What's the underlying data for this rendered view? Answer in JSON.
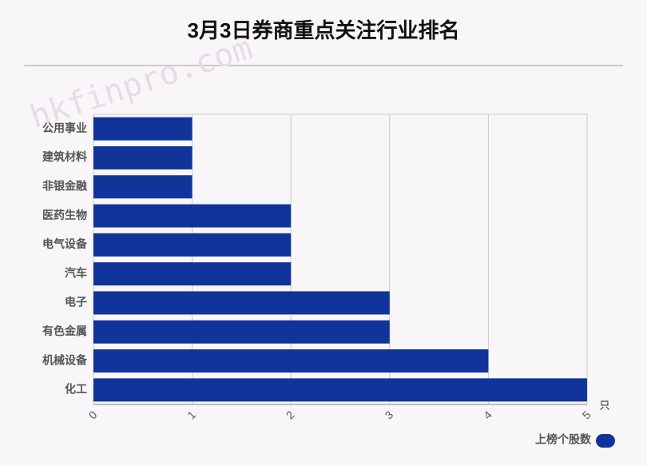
{
  "chart_data": {
    "type": "hbar",
    "title": "3月3日券商重点关注行业排名",
    "watermark": "hkfinpro.com",
    "categories": [
      "公用事业",
      "建筑材料",
      "非银金融",
      "医药生物",
      "电气设备",
      "汽车",
      "电子",
      "有色金属",
      "机械设备",
      "化工"
    ],
    "series": [
      {
        "name": "上榜个股数",
        "color": "#10349a",
        "values": [
          1,
          1,
          1,
          2,
          2,
          2,
          3,
          3,
          4,
          5
        ]
      }
    ],
    "xlim": [
      0,
      5
    ],
    "xticks": [
      0,
      1,
      2,
      3,
      4,
      5
    ],
    "x_unit": "只",
    "grid": true,
    "legend": "bottom-right"
  }
}
